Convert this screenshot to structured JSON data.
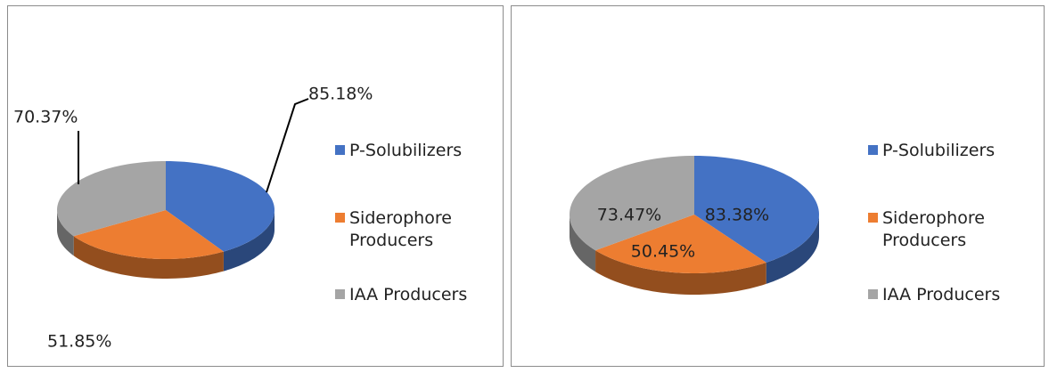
{
  "chart_data": [
    {
      "type": "pie",
      "categories": [
        "P-Solubilizers",
        "Siderophore Producers",
        "IAA Producers"
      ],
      "values": [
        85.18,
        51.85,
        70.37
      ],
      "value_labels": [
        "85.18%",
        "51.85%",
        "70.37%"
      ],
      "colors": [
        "#4472c4",
        "#ed7d31",
        "#a5a5a5"
      ],
      "legend": "right"
    },
    {
      "type": "pie",
      "categories": [
        "P-Solubilizers",
        "Siderophore Producers",
        "IAA Producers"
      ],
      "values": [
        83.38,
        50.45,
        73.47
      ],
      "value_labels": [
        "83.38%",
        "50.45%",
        "73.47%"
      ],
      "colors": [
        "#4472c4",
        "#ed7d31",
        "#a5a5a5"
      ],
      "legend": "right"
    }
  ]
}
